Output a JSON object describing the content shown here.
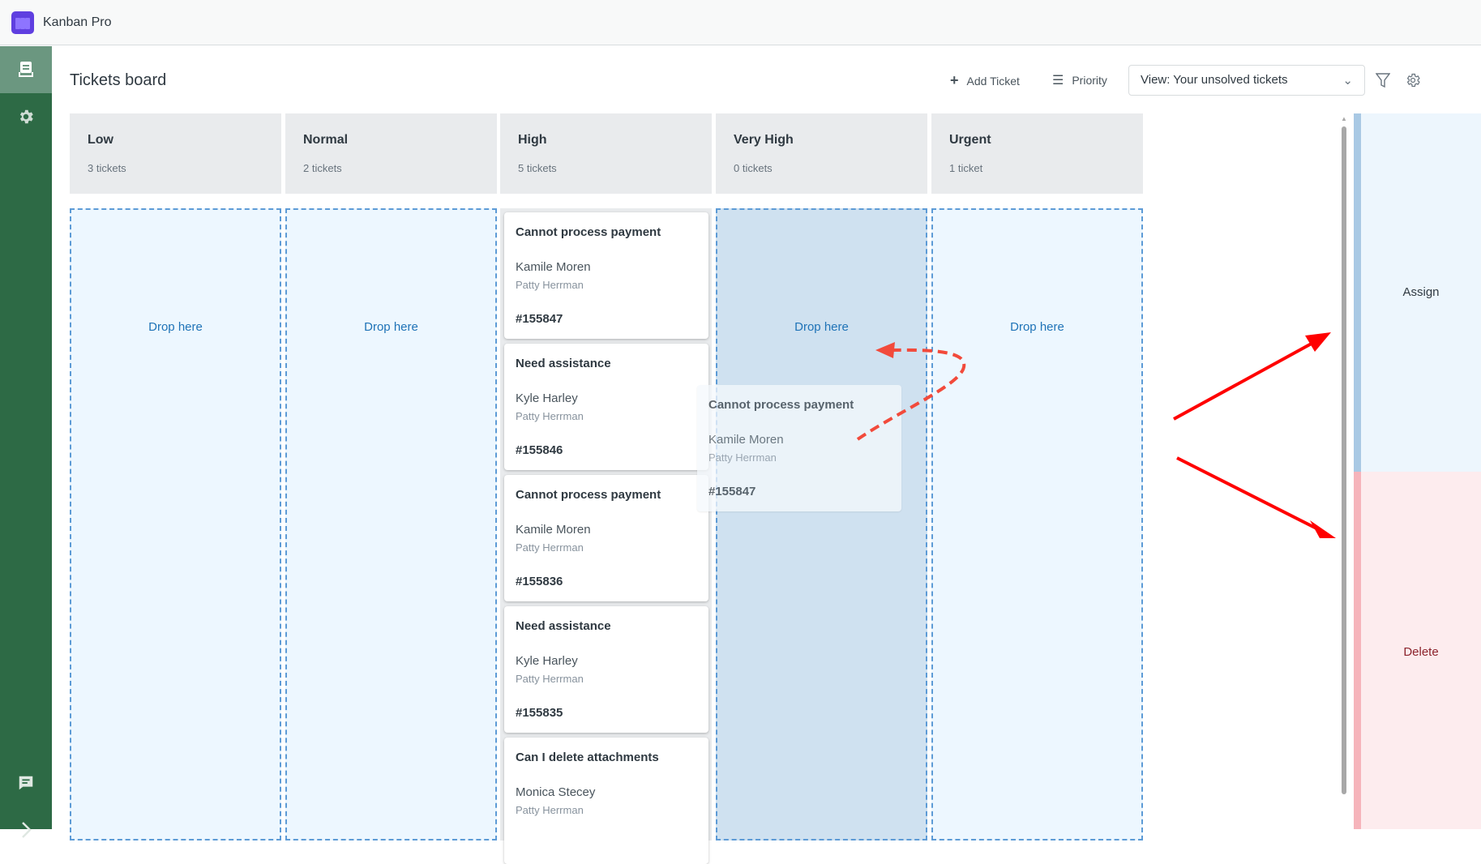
{
  "app": {
    "title": "Kanban Pro"
  },
  "sidebar": {
    "items": [
      {
        "icon": "inbox-icon",
        "active": true
      },
      {
        "icon": "gear-icon"
      },
      {
        "icon": "chat-icon"
      },
      {
        "icon": "chevron-right-icon"
      }
    ]
  },
  "header": {
    "title": "Tickets board",
    "add_ticket": "Add Ticket",
    "priority": "Priority",
    "view": "View: Your unsolved tickets"
  },
  "columns": [
    {
      "name": "Low",
      "count": "3 tickets",
      "drop": "Drop here"
    },
    {
      "name": "Normal",
      "count": "2 tickets",
      "drop": "Drop here"
    },
    {
      "name": "High",
      "count": "5 tickets"
    },
    {
      "name": "Very High",
      "count": "0 tickets",
      "drop": "Drop here"
    },
    {
      "name": "Urgent",
      "count": "1 ticket",
      "drop": "Drop here"
    }
  ],
  "cards": [
    {
      "title": "Cannot process payment",
      "assignee": "Kamile Moren",
      "requester": "Patty Herrman",
      "id": "#155847"
    },
    {
      "title": "Need assistance",
      "assignee": "Kyle Harley",
      "requester": "Patty Herrman",
      "id": "#155846"
    },
    {
      "title": "Cannot process payment",
      "assignee": "Kamile Moren",
      "requester": "Patty Herrman",
      "id": "#155836"
    },
    {
      "title": "Need assistance",
      "assignee": "Kyle Harley",
      "requester": "Patty Herrman",
      "id": "#155835"
    },
    {
      "title": "Can I delete attachments",
      "assignee": "Monica Stecey",
      "requester": "Patty Herrman",
      "id": ""
    }
  ],
  "dragging": {
    "title": "Cannot process payment",
    "assignee": "Kamile Moren",
    "requester": "Patty Herrman",
    "id": "#155847"
  },
  "actions": {
    "assign": "Assign",
    "delete": "Delete"
  },
  "colors": {
    "sidebar": "#2d6a45",
    "accent": "#1f73b7",
    "assign": "#edf6fd",
    "delete": "#fdecee",
    "annotation": "#f24a3b"
  }
}
